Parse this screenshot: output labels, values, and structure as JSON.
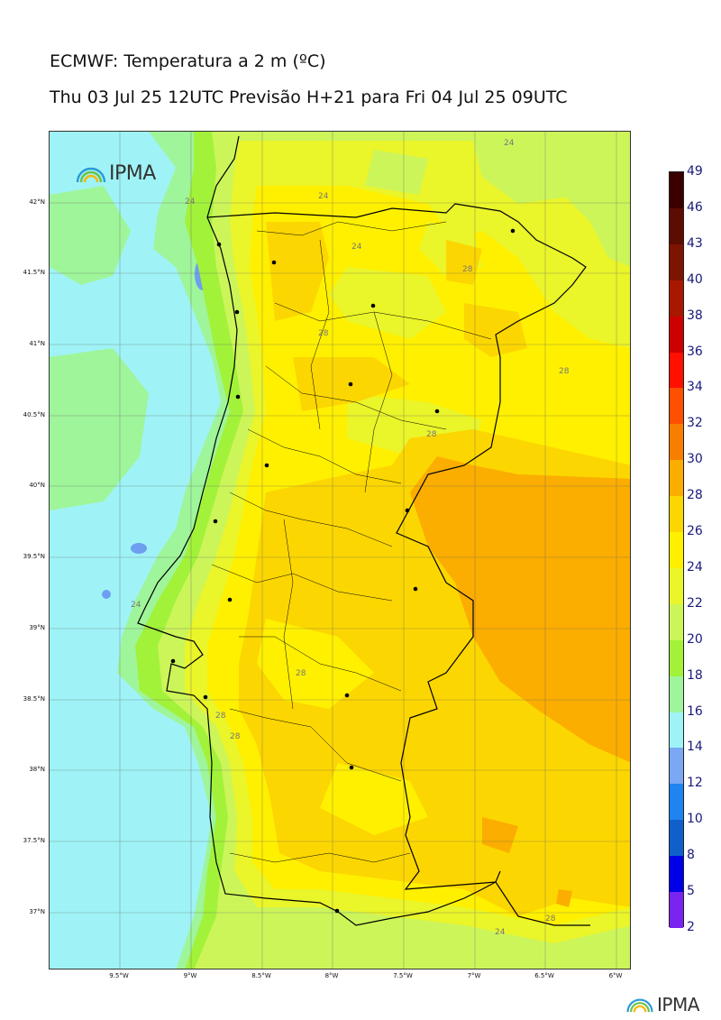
{
  "title": "ECMWF: Temperatura a 2 m (ºC)",
  "subtitle": "Thu 03 Jul 25 12UTC Previsão H+21 para Fri 04 Jul 25 09UTC",
  "logo_text": "IPMA",
  "map": {
    "lat_labels": [
      "42°N",
      "41.5°N",
      "41°N",
      "40.5°N",
      "40°N",
      "39.5°N",
      "39°N",
      "38.5°N",
      "38°N",
      "37.5°N",
      "37°N"
    ],
    "lon_labels": [
      "9.5°W",
      "9°W",
      "8.5°W",
      "8°W",
      "7.5°W",
      "7°W",
      "6.5°W",
      "6°W"
    ],
    "contour_labels": [
      "24",
      "24",
      "24",
      "24",
      "28",
      "28",
      "28",
      "28",
      "28",
      "28",
      "24",
      "28",
      "24",
      "28"
    ],
    "colors": {
      "sea_cool": "#9ff59a",
      "cyan": "#9ff3f6",
      "light_green": "#ccf55a",
      "yellow_green": "#eaf52a",
      "yellow": "#fff000",
      "gold": "#fcd600",
      "orange": "#fbad00",
      "lake_blue": "#6e9ef0"
    }
  },
  "colorbar": {
    "labels": [
      "49",
      "46",
      "43",
      "40",
      "38",
      "36",
      "34",
      "32",
      "30",
      "28",
      "26",
      "24",
      "22",
      "20",
      "18",
      "16",
      "14",
      "12",
      "10",
      "8",
      "5",
      "2"
    ],
    "colors": [
      "#3a0000",
      "#5c0c00",
      "#7d1400",
      "#a81800",
      "#cc0000",
      "#ff1000",
      "#ff5000",
      "#f97e00",
      "#fbad00",
      "#fcd600",
      "#fff000",
      "#eaf52a",
      "#ccf55a",
      "#a2f23a",
      "#9ff59a",
      "#9ff3f6",
      "#7aa8f4",
      "#1f84f0",
      "#1060cc",
      "#0000e8",
      "#7a24f0",
      "#d21df0"
    ]
  }
}
